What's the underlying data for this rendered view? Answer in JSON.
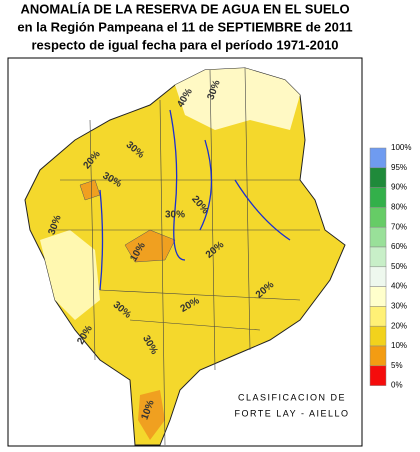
{
  "header": {
    "title_lines": [
      "ANOMALÍA DE LA RESERVA DE AGUA EN EL SUELO",
      "en la Región Pampeana el 11 de SEPTIEMBRE de 2011",
      "respecto de igual fecha para el período 1971-2010"
    ]
  },
  "legend": {
    "labels": [
      "100%",
      "95%",
      "90%",
      "80%",
      "70%",
      "60%",
      "50%",
      "40%",
      "30%",
      "20%",
      "10%",
      "5%",
      "0%"
    ],
    "colors": [
      "#6f9bf0",
      "#1f8a3a",
      "#33b04a",
      "#66cc66",
      "#99e099",
      "#c8efc8",
      "#eef8ee",
      "#ffffcc",
      "#fff176",
      "#f2d21c",
      "#f39c12",
      "#f50c0c"
    ]
  },
  "map": {
    "contour_labels": [
      "40%",
      "30%",
      "30%",
      "20%",
      "30%",
      "30%",
      "20%",
      "10%",
      "30%",
      "20%",
      "30%",
      "20%",
      "20%",
      "30%",
      "20%",
      "10%"
    ]
  },
  "credit": {
    "lines": [
      "CLASIFICACION DE",
      "FORTE LAY - AIELLO"
    ]
  }
}
